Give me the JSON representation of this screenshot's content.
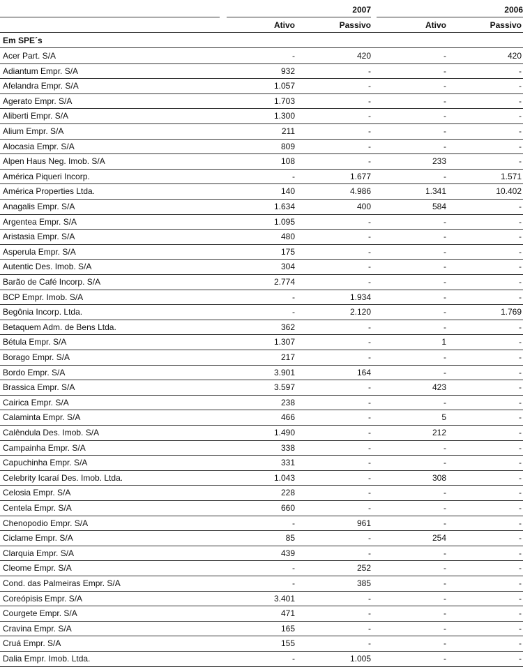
{
  "header": {
    "years": [
      "2007",
      "2006"
    ],
    "columns": [
      "Ativo",
      "Passivo",
      "Ativo",
      "Passivo"
    ]
  },
  "section": "Em SPE´s",
  "rows": [
    [
      "Acer Part. S/A",
      "-",
      "420",
      "-",
      "420"
    ],
    [
      "Adiantum Empr. S/A",
      "932",
      "-",
      "-",
      "-"
    ],
    [
      "Afelandra Empr. S/A",
      "1.057",
      "-",
      "-",
      "-"
    ],
    [
      "Agerato Empr. S/A",
      "1.703",
      "-",
      "-",
      "-"
    ],
    [
      "Aliberti Empr. S/A",
      "1.300",
      "-",
      "-",
      "-"
    ],
    [
      "Alium Empr. S/A",
      "211",
      "-",
      "-",
      "-"
    ],
    [
      "Alocasia Empr. S/A",
      "809",
      "-",
      "-",
      "-"
    ],
    [
      "Alpen Haus Neg. Imob. S/A",
      "108",
      "-",
      "233",
      "-"
    ],
    [
      "América Piqueri Incorp.",
      "-",
      "1.677",
      "-",
      "1.571"
    ],
    [
      "América Properties Ltda.",
      "140",
      "4.986",
      "1.341",
      "10.402"
    ],
    [
      "Anagalis Empr. S/A",
      "1.634",
      "400",
      "584",
      "-"
    ],
    [
      "Argentea Empr. S/A",
      "1.095",
      "-",
      "-",
      "-"
    ],
    [
      "Aristasia Empr. S/A",
      "480",
      "-",
      "-",
      "-"
    ],
    [
      "Asperula Empr. S/A",
      "175",
      "-",
      "-",
      "-"
    ],
    [
      "Autentic Des. Imob. S/A",
      "304",
      "-",
      "-",
      "-"
    ],
    [
      "Barão de Café Incorp. S/A",
      "2.774",
      "-",
      "-",
      "-"
    ],
    [
      "BCP Empr. Imob. S/A",
      "-",
      "1.934",
      "-",
      "-"
    ],
    [
      "Begônia Incorp. Ltda.",
      "-",
      "2.120",
      "-",
      "1.769"
    ],
    [
      "Betaquem Adm. de Bens Ltda.",
      "362",
      "-",
      "-",
      "-"
    ],
    [
      "Bétula Empr. S/A",
      "1.307",
      "-",
      "1",
      "-"
    ],
    [
      "Borago Empr. S/A",
      "217",
      "-",
      "-",
      "-"
    ],
    [
      "Bordo Empr. S/A",
      "3.901",
      "164",
      "-",
      "-"
    ],
    [
      "Brassica Empr. S/A",
      "3.597",
      "-",
      "423",
      "-"
    ],
    [
      "Cairica Empr. S/A",
      "238",
      "-",
      "-",
      "-"
    ],
    [
      "Calaminta Empr. S/A",
      "466",
      "-",
      "5",
      "-"
    ],
    [
      "Calêndula Des. Imob. S/A",
      "1.490",
      "-",
      "212",
      "-"
    ],
    [
      "Campainha Empr. S/A",
      "338",
      "-",
      "-",
      "-"
    ],
    [
      "Capuchinha Empr. S/A",
      "331",
      "-",
      "-",
      "-"
    ],
    [
      "Celebrity Icaraí Des. Imob. Ltda.",
      "1.043",
      "-",
      "308",
      "-"
    ],
    [
      "Celosia Empr. S/A",
      "228",
      "-",
      "-",
      "-"
    ],
    [
      "Centela Empr. S/A",
      "660",
      "-",
      "-",
      "-"
    ],
    [
      "Chenopodio Empr. S/A",
      "-",
      "961",
      "-",
      "-"
    ],
    [
      "Ciclame Empr. S/A",
      "85",
      "-",
      "254",
      "-"
    ],
    [
      "Clarquia Empr. S/A",
      "439",
      "-",
      "-",
      "-"
    ],
    [
      "Cleome Empr. S/A",
      "-",
      "252",
      "-",
      "-"
    ],
    [
      "Cond. das Palmeiras Empr. S/A",
      "-",
      "385",
      "-",
      "-"
    ],
    [
      "Coreópisis Empr. S/A",
      "3.401",
      "-",
      "-",
      "-"
    ],
    [
      "Courgete Empr. S/A",
      "471",
      "-",
      "-",
      "-"
    ],
    [
      "Cravina Empr. S/A",
      "165",
      "-",
      "-",
      "-"
    ],
    [
      "Cruá Empr. S/A",
      "155",
      "-",
      "-",
      "-"
    ],
    [
      "Dalia Empr. Imob. Ltda.",
      "-",
      "1.005",
      "-",
      "-"
    ]
  ]
}
